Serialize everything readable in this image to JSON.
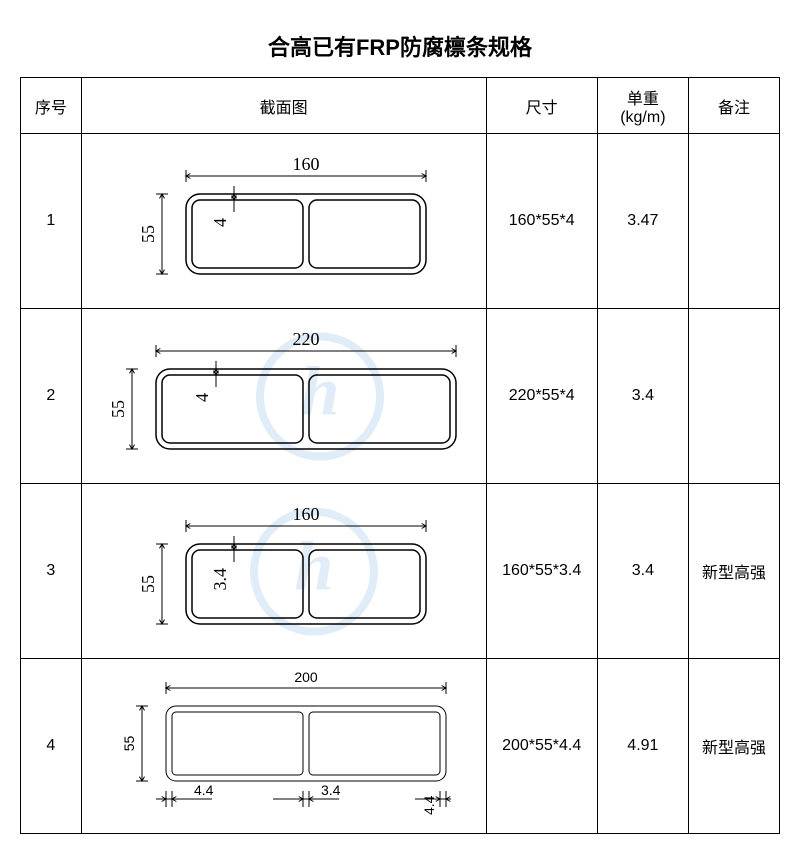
{
  "title": "合高已有FRP防腐檩条规格",
  "columns": {
    "no": "序号",
    "section": "截面图",
    "dim": "尺寸",
    "weight": "单重\n(kg/m)",
    "note": "备注"
  },
  "rows": [
    {
      "no": "1",
      "dim": "160*55*4",
      "weight": "3.47",
      "note": "",
      "diagram": {
        "width_label": "160",
        "height_label": "55",
        "thick_label": "4",
        "outer_w": 240,
        "outer_h": 80,
        "corner_r": 14,
        "stroke": "#000000",
        "stroke_w": 1.5,
        "dim_font": 18,
        "dim_font_family": "serif",
        "middle_rib": true,
        "thick_style": "inside"
      }
    },
    {
      "no": "2",
      "dim": "220*55*4",
      "weight": "3.4",
      "note": "",
      "diagram": {
        "width_label": "220",
        "height_label": "55",
        "thick_label": "4",
        "outer_w": 300,
        "outer_h": 80,
        "corner_r": 14,
        "stroke": "#000000",
        "stroke_w": 1.5,
        "dim_font": 18,
        "dim_font_family": "serif",
        "middle_rib": true,
        "thick_style": "inside"
      }
    },
    {
      "no": "3",
      "dim": "160*55*3.4",
      "weight": "3.4",
      "note": "新型高强",
      "diagram": {
        "width_label": "160",
        "height_label": "55",
        "thick_label": "3.4",
        "outer_w": 240,
        "outer_h": 80,
        "corner_r": 14,
        "stroke": "#000000",
        "stroke_w": 1.5,
        "dim_font": 18,
        "dim_font_family": "serif",
        "middle_rib": true,
        "thick_style": "inside"
      }
    },
    {
      "no": "4",
      "dim": "200*55*4.4",
      "weight": "4.91",
      "note": "新型高强",
      "diagram": {
        "width_label": "200",
        "height_label": "55",
        "thick_labels": [
          "4.4",
          "3.4",
          "4.4"
        ],
        "outer_w": 280,
        "outer_h": 75,
        "corner_r": 10,
        "stroke": "#000000",
        "stroke_w": 1,
        "dim_font": 14,
        "dim_font_family": "sans-serif",
        "middle_rib": true,
        "thick_style": "below"
      }
    }
  ],
  "watermark": {
    "color": "#5b9bd5",
    "radius": 60,
    "stroke_w": 8
  }
}
